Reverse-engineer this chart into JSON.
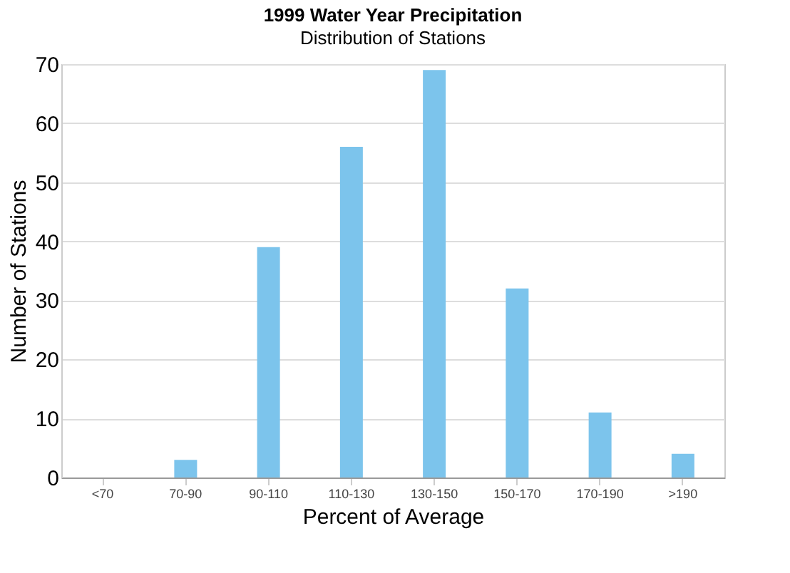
{
  "chart_data": {
    "type": "bar",
    "title": "1999 Water Year Precipitation",
    "subtitle": "Distribution of Stations",
    "xlabel": "Percent of Average",
    "ylabel": "Number of Stations",
    "categories": [
      "<70",
      "70-90",
      "90-110",
      "110-130",
      "130-150",
      "150-170",
      "170-190",
      ">190"
    ],
    "values": [
      0,
      3,
      39,
      56,
      69,
      32,
      11,
      4
    ],
    "color": "#7cc4ec",
    "ylim": [
      0,
      70
    ],
    "yticks": [
      0,
      10,
      20,
      30,
      40,
      50,
      60,
      70
    ],
    "grid": "y"
  }
}
